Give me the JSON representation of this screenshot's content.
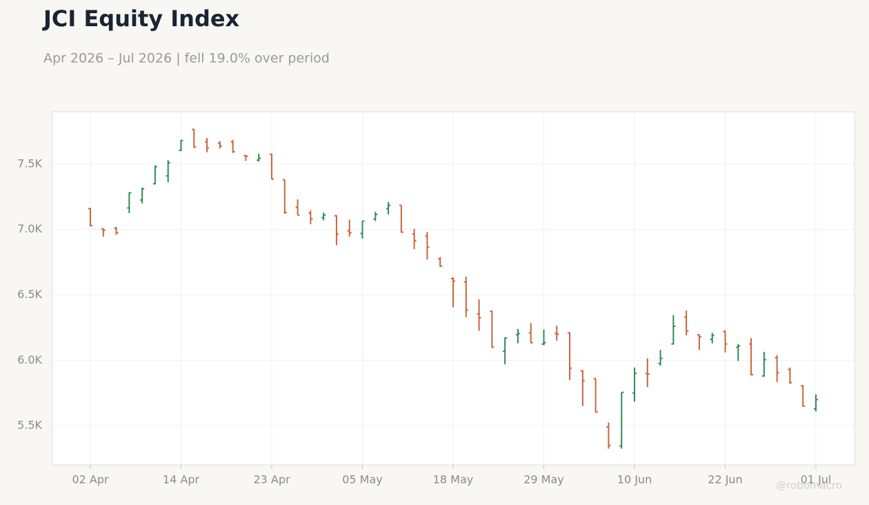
{
  "chart_data": {
    "type": "ohlc",
    "title": "JCI Equity Index",
    "subtitle": "Apr 2026 – Jul 2026 | fell 19.0% over period",
    "watermark": "@robomacro",
    "categories": [
      "02 Apr",
      null,
      null,
      null,
      null,
      null,
      null,
      "14 Apr",
      null,
      null,
      null,
      null,
      null,
      null,
      "23 Apr",
      null,
      null,
      null,
      null,
      null,
      null,
      "05 May",
      null,
      null,
      null,
      null,
      null,
      null,
      "18 May",
      null,
      null,
      null,
      null,
      null,
      null,
      "29 May",
      null,
      null,
      null,
      null,
      null,
      null,
      "10 Jun",
      null,
      null,
      null,
      null,
      null,
      null,
      "22 Jun",
      null,
      null,
      null,
      null,
      null,
      null,
      "01 Jul"
    ],
    "open": [
      7160,
      7005,
      7010,
      7165,
      7225,
      7350,
      7410,
      7605,
      7765,
      7670,
      7660,
      7670,
      7565,
      7530,
      7575,
      7380,
      7170,
      7125,
      7090,
      7105,
      6990,
      6970,
      7080,
      7160,
      7185,
      6965,
      6950,
      6775,
      6625,
      6600,
      6355,
      6375,
      6070,
      6195,
      6210,
      6125,
      6205,
      6210,
      5920,
      5860,
      5490,
      5345,
      5750,
      5900,
      5975,
      6125,
      6330,
      6195,
      6160,
      6220,
      6100,
      6125,
      5880,
      6020,
      5930,
      5805,
      5630
    ],
    "high": [
      7165,
      7008,
      7020,
      7285,
      7320,
      7490,
      7530,
      7685,
      7770,
      7700,
      7675,
      7685,
      7570,
      7580,
      7580,
      7380,
      7230,
      7145,
      7130,
      7110,
      7075,
      7065,
      7135,
      7210,
      7185,
      7005,
      6980,
      6790,
      6635,
      6640,
      6465,
      6380,
      6175,
      6240,
      6285,
      6235,
      6265,
      6215,
      5925,
      5860,
      5525,
      5755,
      5945,
      6015,
      6080,
      6345,
      6380,
      6200,
      6210,
      6230,
      6125,
      6170,
      6065,
      6040,
      5945,
      5810,
      5740
    ],
    "low": [
      7025,
      6945,
      6960,
      7125,
      7200,
      7345,
      7360,
      7600,
      7625,
      7590,
      7620,
      7585,
      7525,
      7520,
      7385,
      7120,
      7110,
      7040,
      7070,
      6880,
      6945,
      6930,
      7065,
      7115,
      6975,
      6850,
      6770,
      6715,
      6405,
      6330,
      6225,
      6095,
      5970,
      6130,
      6130,
      6115,
      6150,
      5850,
      5650,
      5600,
      5325,
      5325,
      5685,
      5795,
      5960,
      6120,
      6190,
      6080,
      6130,
      6060,
      5995,
      5885,
      5875,
      5835,
      5820,
      5645,
      5610
    ],
    "close": [
      7030,
      6995,
      6975,
      7280,
      7310,
      7480,
      7510,
      7680,
      7630,
      7625,
      7640,
      7595,
      7560,
      7545,
      7385,
      7130,
      7110,
      7080,
      7110,
      6965,
      6975,
      7065,
      7115,
      7185,
      6980,
      6915,
      6865,
      6720,
      6605,
      6385,
      6325,
      6100,
      6170,
      6205,
      6135,
      6135,
      6200,
      5940,
      5845,
      5605,
      5350,
      5755,
      5900,
      5895,
      6015,
      6260,
      6225,
      6180,
      6190,
      6125,
      6110,
      5890,
      6005,
      5905,
      5830,
      5650,
      5700
    ],
    "up_color": "#2e8b57",
    "down_color": "#c8643c",
    "ylim": [
      5200,
      7900
    ],
    "yticks": [
      {
        "value": 5500,
        "label": "5.5K"
      },
      {
        "value": 6000,
        "label": "6.0K"
      },
      {
        "value": 6500,
        "label": "6.5K"
      },
      {
        "value": 7000,
        "label": "7.0K"
      },
      {
        "value": 7500,
        "label": "7.5K"
      }
    ],
    "grid": true
  }
}
